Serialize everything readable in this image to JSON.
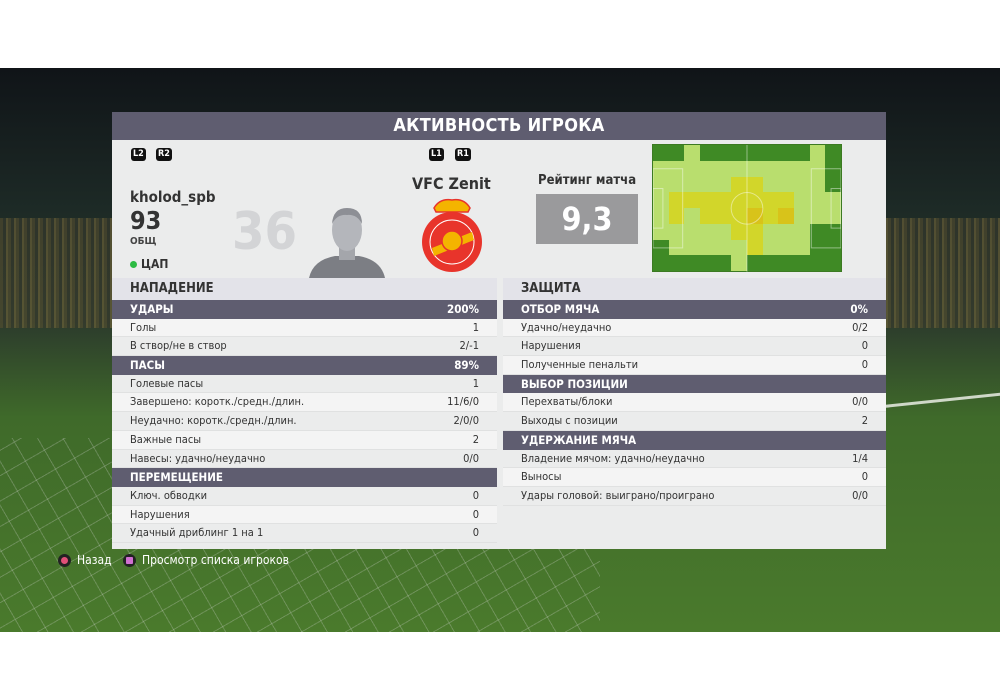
{
  "title": "АКТИВНОСТЬ ИГРОКА",
  "controls": {
    "left": [
      "L2",
      "R2"
    ],
    "right": [
      "L1",
      "R1"
    ]
  },
  "player": {
    "name": "kholod_spb",
    "number": "36",
    "overall": "93",
    "overall_label": "ОБЩ",
    "position": "ЦАП",
    "status_color": "#2cbb43"
  },
  "team": {
    "name": "VFC Zenit",
    "crest_colors": [
      "#e8342b",
      "#f4b400"
    ]
  },
  "rating": {
    "label": "Рейтинг матча",
    "value": "9,3"
  },
  "heatmap": {
    "levels": [
      [
        0,
        0,
        1,
        0,
        0,
        0,
        0,
        0,
        0,
        0,
        1,
        0
      ],
      [
        1,
        1,
        1,
        1,
        1,
        1,
        1,
        1,
        1,
        1,
        1,
        0
      ],
      [
        1,
        1,
        1,
        1,
        1,
        2,
        2,
        1,
        1,
        1,
        1,
        0
      ],
      [
        1,
        2,
        2,
        2,
        2,
        2,
        2,
        2,
        2,
        1,
        1,
        1
      ],
      [
        1,
        2,
        1,
        2,
        2,
        2,
        3,
        2,
        3,
        1,
        1,
        1
      ],
      [
        1,
        1,
        1,
        1,
        1,
        2,
        2,
        1,
        1,
        1,
        0,
        0
      ],
      [
        0,
        1,
        1,
        1,
        1,
        1,
        2,
        1,
        1,
        1,
        0,
        0
      ],
      [
        0,
        0,
        0,
        0,
        0,
        1,
        0,
        0,
        0,
        0,
        0,
        0
      ]
    ],
    "colors": [
      "#3f8a25",
      "#b9de6e",
      "#d2d62a",
      "#d8c31a"
    ]
  },
  "attack": {
    "title": "НАПАДЕНИЕ",
    "groups": [
      {
        "title": "УДАРЫ",
        "value": "200%",
        "rows": [
          [
            "Голы",
            "1"
          ],
          [
            "В створ/не в створ",
            "2/-1"
          ]
        ]
      },
      {
        "title": "ПАСЫ",
        "value": "89%",
        "rows": [
          [
            "Голевые пасы",
            "1"
          ],
          [
            "Завершено: коротк./средн./длин.",
            "11/6/0"
          ],
          [
            "Неудачно: коротк./средн./длин.",
            "2/0/0"
          ],
          [
            "Важные пасы",
            "2"
          ],
          [
            "Навесы: удачно/неудачно",
            "0/0"
          ]
        ]
      },
      {
        "title": "ПЕРЕМЕЩЕНИЕ",
        "value": "",
        "rows": [
          [
            "Ключ. обводки",
            "0"
          ],
          [
            "Нарушения",
            "0"
          ],
          [
            "Удачный дриблинг 1 на 1",
            "0"
          ]
        ]
      }
    ]
  },
  "defense": {
    "title": "ЗАЩИТА",
    "groups": [
      {
        "title": "ОТБОР МЯЧА",
        "value": "0%",
        "rows": [
          [
            "Удачно/неудачно",
            "0/2"
          ],
          [
            "Нарушения",
            "0"
          ],
          [
            "Полученные пенальти",
            "0"
          ]
        ]
      },
      {
        "title": "ВЫБОР ПОЗИЦИИ",
        "value": "",
        "rows": [
          [
            "Перехваты/блоки",
            "0/0"
          ],
          [
            "Выходы с позиции",
            "2"
          ]
        ]
      },
      {
        "title": "УДЕРЖАНИЕ МЯЧА",
        "value": "",
        "rows": [
          [
            "Владение мячом: удачно/неудачно",
            "1/4"
          ],
          [
            "Выносы",
            "0"
          ],
          [
            "Удары головой: выиграно/проиграно",
            "0/0"
          ]
        ]
      }
    ]
  },
  "footer": {
    "back": "Назад",
    "roster": "Просмотр списка игроков"
  }
}
